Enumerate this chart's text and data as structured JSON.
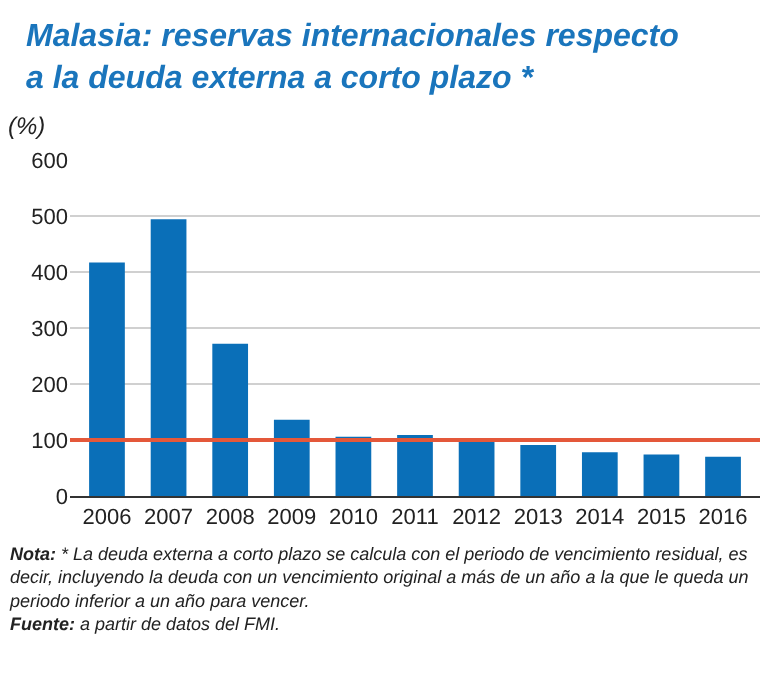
{
  "chart_data": {
    "type": "bar",
    "title": "Malasia: reservas internacionales respecto a la deuda externa a corto plazo *",
    "ylabel": "(%)",
    "categories": [
      "2006",
      "2007",
      "2008",
      "2009",
      "2010",
      "2011",
      "2012",
      "2013",
      "2014",
      "2015",
      "2016"
    ],
    "values": [
      417,
      494,
      272,
      136,
      106,
      109,
      103,
      91,
      78,
      74,
      70
    ],
    "color": "#0a6fb8",
    "ylim": [
      0,
      600
    ],
    "yticks": [
      0,
      100,
      200,
      300,
      400,
      500,
      600
    ],
    "grid": "y",
    "ref_lines": [
      {
        "axis": "y",
        "value": 100,
        "color": "#e4583a",
        "line_style": "solid"
      }
    ],
    "annotations": [
      "Nota: * La deuda externa a corto plazo se calcula con el periodo de vencimiento residual, es decir, incluyendo la deuda con un vencimiento original a más de un año a la que le queda un periodo inferior a un año para vencer.",
      "Fuente: a partir de datos del FMI."
    ]
  }
}
